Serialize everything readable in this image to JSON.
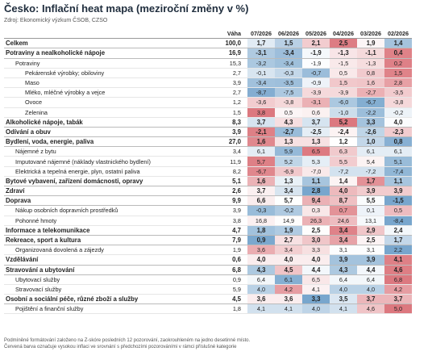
{
  "header": {
    "title": "Česko: Inflační heat mapa (meziroční změny v %)",
    "subtitle": "Zdroj: Ekonomický výzkum ČSOB, CZSO"
  },
  "table": {
    "columns": [
      "Váha",
      "07/2026",
      "06/2026",
      "05/2026",
      "04/2026",
      "03/2026",
      "02/2026"
    ],
    "rows": [
      {
        "label": "Celkem",
        "level": 0,
        "bold": true,
        "weight": "100,0",
        "values": [
          "1,7",
          "1,5",
          "2,1",
          "2,5",
          "1,9",
          "1,4"
        ]
      },
      {
        "label": "Potraviny a nealkoholické nápoje",
        "level": 0,
        "bold": true,
        "weight": "16,9",
        "values": [
          "-3,1",
          "-3,4",
          "-1,9",
          "-1,3",
          "-1,1",
          "0,4"
        ]
      },
      {
        "label": "Potraviny",
        "level": 1,
        "bold": false,
        "weight": "15,3",
        "values": [
          "-3,2",
          "-3,4",
          "-1,9",
          "-1,5",
          "-1,3",
          "0,2"
        ]
      },
      {
        "label": "Pekárenské výrobky; obiloviny",
        "level": 2,
        "bold": false,
        "weight": "2,7",
        "values": [
          "-0,1",
          "-0,3",
          "-0,7",
          "0,5",
          "0,8",
          "1,5"
        ]
      },
      {
        "label": "Maso",
        "level": 2,
        "bold": false,
        "weight": "3,9",
        "values": [
          "-3,4",
          "-3,5",
          "-0,9",
          "1,5",
          "1,6",
          "2,8"
        ]
      },
      {
        "label": "Mléko, mléčné výrobky a vejce",
        "level": 2,
        "bold": false,
        "weight": "2,7",
        "values": [
          "-8,7",
          "-7,5",
          "-3,9",
          "-3,9",
          "-2,7",
          "-3,5"
        ]
      },
      {
        "label": "Ovoce",
        "level": 2,
        "bold": false,
        "weight": "1,2",
        "values": [
          "-3,6",
          "-3,8",
          "-3,1",
          "-6,0",
          "-6,7",
          "-3,8"
        ]
      },
      {
        "label": "Zelenina",
        "level": 2,
        "bold": false,
        "weight": "1,5",
        "values": [
          "3,8",
          "0,5",
          "0,6",
          "-1,0",
          "-2,2",
          "-0,2"
        ]
      },
      {
        "label": "Alkoholické nápoje, tabák",
        "level": 0,
        "bold": true,
        "weight": "8,3",
        "values": [
          "3,7",
          "4,3",
          "3,7",
          "5,2",
          "3,3",
          "4,0"
        ]
      },
      {
        "label": "Odívání a obuv",
        "level": 0,
        "bold": true,
        "weight": "3,9",
        "values": [
          "-2,1",
          "-2,7",
          "-2,5",
          "-2,4",
          "-2,6",
          "-2,3"
        ]
      },
      {
        "label": "Bydlení, voda, energie, paliva",
        "level": 0,
        "bold": true,
        "weight": "27,0",
        "values": [
          "1,6",
          "1,3",
          "1,3",
          "1,2",
          "1,0",
          "0,8"
        ]
      },
      {
        "label": "Nájemné z bytu",
        "level": 1,
        "bold": false,
        "weight": "3,4",
        "values": [
          "6,1",
          "5,9",
          "6,5",
          "6,3",
          "6,1",
          "6,1"
        ]
      },
      {
        "label": "Imputované nájemné (náklady vlastnického bydlení)",
        "level": 1,
        "bold": false,
        "weight": "11,9",
        "values": [
          "5,7",
          "5,2",
          "5,3",
          "5,5",
          "5,4",
          "5,1"
        ]
      },
      {
        "label": "Elektrická a tepelná energie, plyn, ostatní paliva",
        "level": 1,
        "bold": false,
        "weight": "8,2",
        "values": [
          "-6,7",
          "-6,9",
          "-7,0",
          "-7,2",
          "-7,2",
          "-7,4"
        ]
      },
      {
        "label": "Bytové vybavení, zařízení domácnosti, opravy",
        "level": 0,
        "bold": true,
        "weight": "5,1",
        "values": [
          "1,6",
          "1,3",
          "1,1",
          "1,4",
          "1,7",
          "1,1"
        ]
      },
      {
        "label": "Zdraví",
        "level": 0,
        "bold": true,
        "weight": "2,6",
        "values": [
          "3,7",
          "3,4",
          "2,8",
          "4,0",
          "3,9",
          "3,9"
        ]
      },
      {
        "label": "Doprava",
        "level": 0,
        "bold": true,
        "weight": "9,9",
        "values": [
          "6,6",
          "5,7",
          "9,4",
          "8,7",
          "5,5",
          "-1,5"
        ]
      },
      {
        "label": "Nákup osobních dopravních prostředků",
        "level": 1,
        "bold": false,
        "weight": "3,9",
        "values": [
          "-0,3",
          "-0,2",
          "0,3",
          "0,7",
          "0,1",
          "0,5"
        ]
      },
      {
        "label": "Pohonné hmoty",
        "level": 1,
        "bold": false,
        "weight": "3,8",
        "values": [
          "16,8",
          "14,9",
          "26,3",
          "24,6",
          "13,1",
          "-8,4"
        ]
      },
      {
        "label": "Informace a telekomunikace",
        "level": 0,
        "bold": true,
        "weight": "4,7",
        "values": [
          "1,8",
          "1,9",
          "2,5",
          "3,4",
          "2,9",
          "2,4"
        ]
      },
      {
        "label": "Rekreace, sport a kultura",
        "level": 0,
        "bold": true,
        "weight": "7,9",
        "values": [
          "0,9",
          "2,7",
          "3,0",
          "3,4",
          "2,5",
          "1,7"
        ]
      },
      {
        "label": "Organizovaná dovolená a zájezdy",
        "level": 1,
        "bold": false,
        "weight": "1,9",
        "values": [
          "3,6",
          "3,4",
          "3,3",
          "3,1",
          "3,1",
          "2,2"
        ]
      },
      {
        "label": "Vzdělávání",
        "level": 0,
        "bold": true,
        "weight": "0,6",
        "values": [
          "4,0",
          "4,0",
          "4,0",
          "3,9",
          "3,9",
          "4,1"
        ]
      },
      {
        "label": "Stravování a ubytování",
        "level": 0,
        "bold": true,
        "weight": "6,8",
        "values": [
          "4,3",
          "4,5",
          "4,4",
          "4,3",
          "4,4",
          "4,6"
        ]
      },
      {
        "label": "Ubytovací služby",
        "level": 1,
        "bold": false,
        "weight": "0,9",
        "values": [
          "6,4",
          "6,1",
          "6,5",
          "6,4",
          "6,4",
          "6,8"
        ]
      },
      {
        "label": "Stravovací služby",
        "level": 1,
        "bold": false,
        "weight": "5,9",
        "values": [
          "4,0",
          "4,2",
          "4,1",
          "4,0",
          "4,0",
          "4,2"
        ]
      },
      {
        "label": "Osobní a sociální péče, různé zboží a služby",
        "level": 0,
        "bold": true,
        "weight": "4,5",
        "values": [
          "3,6",
          "3,6",
          "3,3",
          "3,5",
          "3,7",
          "3,7"
        ]
      },
      {
        "label": "Pojištění a finanční služby",
        "level": 1,
        "bold": false,
        "weight": "1,8",
        "values": [
          "4,1",
          "4,1",
          "4,0",
          "4,1",
          "4,6",
          "5,0"
        ]
      }
    ]
  },
  "footer": {
    "notes": [
      "Podmíněné formátování založeno na Z-skóre posledních 12 pozorování, zaokrouhleném na jedno desetinné místo.",
      "Červená barva označuje vysokou inflaci ve srovnání s předchozími pozorováními v rámci příslušné kategorie"
    ]
  }
}
